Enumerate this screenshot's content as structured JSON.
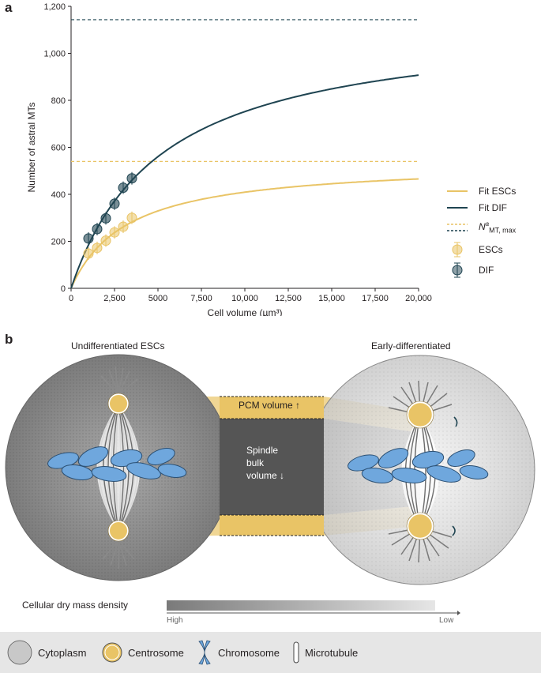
{
  "panel_a": {
    "label": "a",
    "chart_data": {
      "type": "scatter",
      "xlabel": "Cell volume (µm³)",
      "ylabel": "Number of astral MTs",
      "xlim": [
        0,
        20000
      ],
      "ylim": [
        0,
        1200
      ],
      "x_ticks": [
        "0",
        "2,500",
        "5000",
        "7,500",
        "10,000",
        "12,500",
        "15,000",
        "17,500",
        "20,000"
      ],
      "y_ticks": [
        "0",
        "200",
        "400",
        "600",
        "800",
        "1,000",
        "1,200"
      ],
      "colors": {
        "escs": "#e9c466",
        "dif": "#1f4451"
      },
      "series": [
        {
          "name": "ESCs",
          "x": [
            1000,
            1500,
            2000,
            2500,
            3000,
            3500
          ],
          "y": [
            148,
            172,
            203,
            238,
            262,
            300
          ]
        },
        {
          "name": "DIF",
          "x": [
            1000,
            1500,
            2000,
            2500,
            3000,
            3500
          ],
          "y": [
            212,
            252,
            298,
            360,
            428,
            468
          ]
        }
      ],
      "fits": [
        {
          "name": "Fit ESCs",
          "nmax": 540,
          "k": 3200
        },
        {
          "name": "Fit DIF",
          "nmax": 1143,
          "k": 5200
        }
      ],
      "legend_position": "right",
      "grid": false
    },
    "legend": {
      "fit_escs": "Fit ESCs",
      "fit_dif": "Fit DIF",
      "nmax_main": "N",
      "nmax_sup": "a",
      "nmax_sub": "MT, max",
      "escs": "ESCs",
      "dif": "DIF"
    }
  },
  "panel_b": {
    "label": "b",
    "left_title": "Undifferentiated ESCs",
    "right_title": "Early-differentiated",
    "pcm_label": "PCM volume",
    "pcm_arrow": "↑",
    "spindle_line1": "Spindle",
    "spindle_line2": "bulk",
    "spindle_line3": "volume",
    "spindle_arrow": "↓",
    "density_label": "Cellular dry mass density",
    "density_high": "High",
    "density_low": "Low"
  },
  "key": {
    "cytoplasm": "Cytoplasm",
    "centrosome": "Centrosome",
    "chromosome": "Chromosome",
    "microtubule": "Microtubule"
  }
}
